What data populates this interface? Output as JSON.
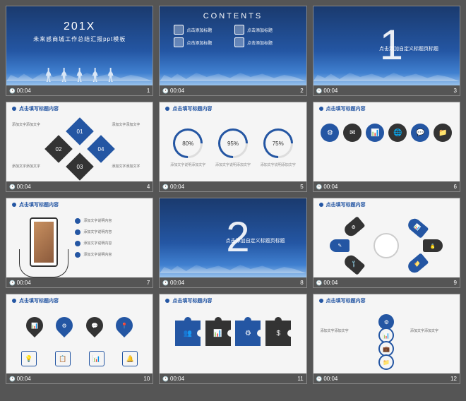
{
  "timestamp": "00:04",
  "slides": {
    "s1": {
      "num": "1",
      "year": "201X",
      "subtitle": "未来感商城工作总结汇报ppt模板"
    },
    "s2": {
      "num": "2",
      "title": "CONTENTS",
      "items": [
        "点击添加标题",
        "点击添加标题",
        "点击添加标题",
        "点击添加标题"
      ]
    },
    "s3": {
      "num": "3",
      "bignum": "1",
      "label": "点击添加自定义标题页标题"
    },
    "s4": {
      "num": "4",
      "title": "点击填写标题内容",
      "text": "添加文字添加文字"
    },
    "s5": {
      "num": "5",
      "title": "点击填写标题内容",
      "percents": [
        "80%",
        "95%",
        "75%"
      ],
      "desc": "添加文字说明添加文字"
    },
    "s6": {
      "num": "6",
      "title": "点击填写标题内容"
    },
    "s7": {
      "num": "7",
      "title": "点击填写标题内容",
      "btext": "添加文字说明内容"
    },
    "s8": {
      "num": "8",
      "bignum": "2",
      "label": "点击添加自定义标题页标题"
    },
    "s9": {
      "num": "9",
      "title": "点击填写标题内容"
    },
    "s10": {
      "num": "10",
      "title": "点击填写标题内容"
    },
    "s11": {
      "num": "11",
      "title": "点击填写标题内容"
    },
    "s12": {
      "num": "12",
      "title": "点击填写标题内容"
    }
  }
}
